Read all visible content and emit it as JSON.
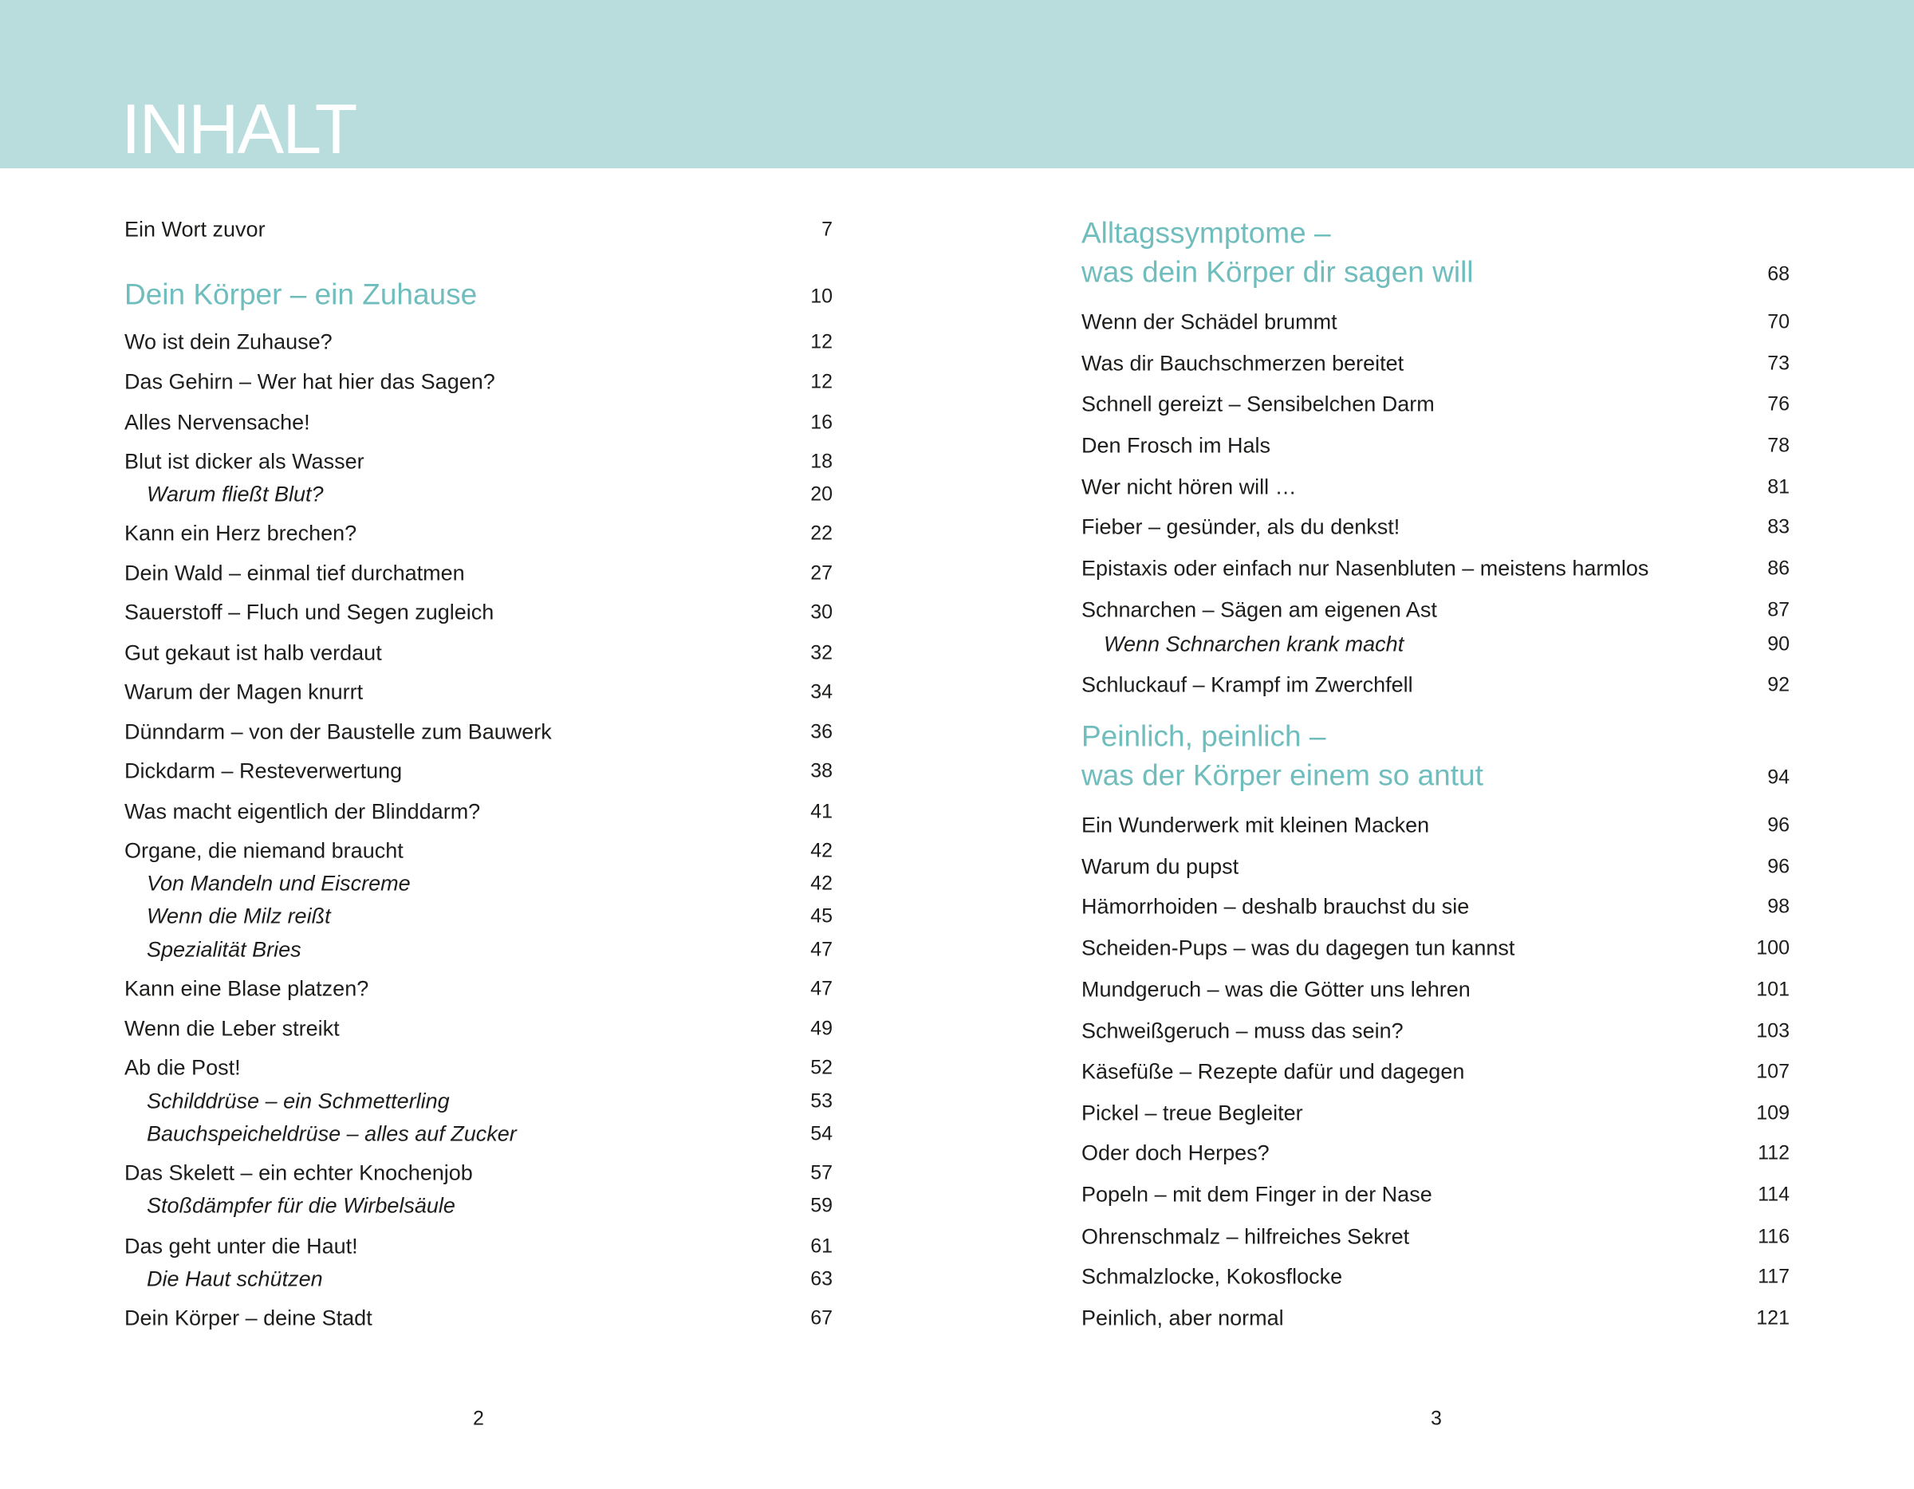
{
  "header": {
    "title": "INHALT",
    "band_color": "#b9dcdd",
    "accent_color": "#6fbdbc"
  },
  "left_page": {
    "page_number": "2",
    "entries": [
      {
        "type": "entry",
        "label": "Ein Wort zuvor",
        "page": "7"
      },
      {
        "type": "section",
        "label": "Dein Körper – ein Zuhause",
        "page": "10"
      },
      {
        "type": "entry",
        "label": "Wo ist dein Zuhause?",
        "page": "12"
      },
      {
        "type": "entry",
        "label": "Das Gehirn – Wer hat hier das Sagen?",
        "page": "12"
      },
      {
        "type": "entry",
        "label": "Alles Nervensache!",
        "page": "16"
      },
      {
        "type": "entry",
        "label": "Blut ist dicker als Wasser",
        "page": "18"
      },
      {
        "type": "sub",
        "label": "Warum fließt Blut?",
        "page": "20"
      },
      {
        "type": "entry",
        "label": "Kann ein Herz brechen?",
        "page": "22"
      },
      {
        "type": "entry",
        "label": "Dein Wald – einmal tief durchatmen",
        "page": "27"
      },
      {
        "type": "entry",
        "label": "Sauerstoff – Fluch und Segen zugleich",
        "page": "30"
      },
      {
        "type": "entry",
        "label": "Gut gekaut ist halb verdaut",
        "page": "32"
      },
      {
        "type": "entry",
        "label": "Warum der Magen knurrt",
        "page": "34"
      },
      {
        "type": "entry",
        "label": "Dünndarm – von der Baustelle zum Bauwerk",
        "page": "36"
      },
      {
        "type": "entry",
        "label": "Dickdarm – Resteverwertung",
        "page": "38"
      },
      {
        "type": "entry",
        "label": "Was macht eigentlich der Blinddarm?",
        "page": "41"
      },
      {
        "type": "entry",
        "label": "Organe, die niemand braucht",
        "page": "42"
      },
      {
        "type": "sub",
        "label": "Von Mandeln und Eiscreme",
        "page": "42"
      },
      {
        "type": "sub",
        "label": "Wenn die Milz reißt",
        "page": "45"
      },
      {
        "type": "sub",
        "label": "Spezialität Bries",
        "page": "47"
      },
      {
        "type": "entry",
        "label": "Kann eine Blase platzen?",
        "page": "47"
      },
      {
        "type": "entry",
        "label": "Wenn die Leber streikt",
        "page": "49"
      },
      {
        "type": "entry",
        "label": "Ab die Post!",
        "page": "52"
      },
      {
        "type": "sub",
        "label": "Schilddrüse – ein Schmetterling",
        "page": "53"
      },
      {
        "type": "sub",
        "label": "Bauchspeicheldrüse – alles auf Zucker",
        "page": "54"
      },
      {
        "type": "entry",
        "label": "Das Skelett – ein echter Knochenjob",
        "page": "57"
      },
      {
        "type": "sub",
        "label": "Stoßdämpfer für die Wirbelsäule",
        "page": "59"
      },
      {
        "type": "entry",
        "label": "Das geht unter die Haut!",
        "page": "61"
      },
      {
        "type": "sub",
        "label": "Die Haut schützen",
        "page": "63"
      },
      {
        "type": "entry",
        "label": "Dein Körper – deine Stadt",
        "page": "67"
      }
    ]
  },
  "right_page": {
    "page_number": "3",
    "entries": [
      {
        "type": "section",
        "label": "Alltagssymptome –",
        "label2": "was dein Körper dir sagen will",
        "page": "68"
      },
      {
        "type": "entry",
        "label": "Wenn der Schädel brummt",
        "page": "70"
      },
      {
        "type": "entry",
        "label": "Was dir Bauchschmerzen bereitet",
        "page": "73"
      },
      {
        "type": "entry",
        "label": "Schnell gereizt – Sensibelchen Darm",
        "page": "76"
      },
      {
        "type": "entry",
        "label": "Den Frosch im Hals",
        "page": "78"
      },
      {
        "type": "entry",
        "label": "Wer nicht hören will …",
        "page": "81"
      },
      {
        "type": "entry",
        "label": "Fieber – gesünder, als du denkst!",
        "page": "83"
      },
      {
        "type": "entry",
        "label": "Epistaxis oder einfach nur Nasenbluten – meistens harmlos",
        "page": "86"
      },
      {
        "type": "entry",
        "label": "Schnarchen – Sägen am eigenen Ast",
        "page": "87"
      },
      {
        "type": "sub",
        "label": "Wenn Schnarchen krank macht",
        "page": "90"
      },
      {
        "type": "entry",
        "label": "Schluckauf – Krampf im Zwerchfell",
        "page": "92"
      },
      {
        "type": "section",
        "label": "Peinlich, peinlich –",
        "label2": "was der Körper einem so antut",
        "page": "94"
      },
      {
        "type": "entry",
        "label": "Ein Wunderwerk mit kleinen Macken",
        "page": "96"
      },
      {
        "type": "entry",
        "label": "Warum du pupst",
        "page": "96"
      },
      {
        "type": "entry",
        "label": "Hämorrhoiden – deshalb brauchst du sie",
        "page": "98"
      },
      {
        "type": "entry",
        "label": "Scheiden-Pups – was du dagegen tun kannst",
        "page": "100"
      },
      {
        "type": "entry",
        "label": "Mundgeruch – was die Götter uns lehren",
        "page": "101"
      },
      {
        "type": "entry",
        "label": "Schweißgeruch – muss das sein?",
        "page": "103"
      },
      {
        "type": "entry",
        "label": "Käsefüße – Rezepte dafür und dagegen",
        "page": "107"
      },
      {
        "type": "entry",
        "label": "Pickel – treue Begleiter",
        "page": "109"
      },
      {
        "type": "entry",
        "label": "Oder doch Herpes?",
        "page": "112"
      },
      {
        "type": "entry",
        "label": "Popeln – mit dem Finger in der Nase",
        "page": "114"
      },
      {
        "type": "entry",
        "label": "Ohrenschmalz – hilfreiches Sekret",
        "page": "116"
      },
      {
        "type": "entry",
        "label": "Schmalzlocke, Kokosflocke",
        "page": "117"
      },
      {
        "type": "entry",
        "label": "Peinlich, aber normal",
        "page": "121"
      }
    ]
  }
}
